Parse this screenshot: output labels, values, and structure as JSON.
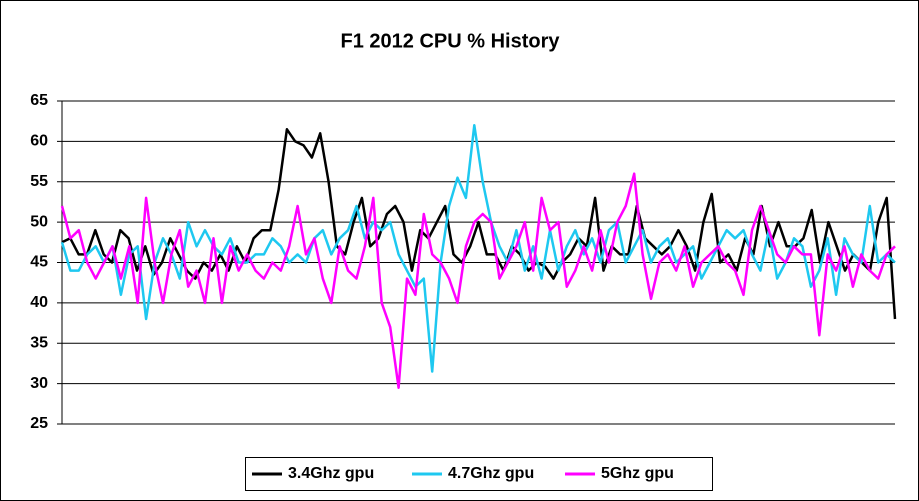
{
  "chart_data": {
    "type": "line",
    "title": "F1 2012 CPU % History",
    "ylim": [
      25,
      65
    ],
    "yticks": [
      25,
      30,
      35,
      40,
      45,
      50,
      55,
      60,
      65
    ],
    "grid": true,
    "legend": "bottom",
    "series": [
      {
        "name": "3.4Ghz gpu",
        "color": "#000000",
        "values": [
          47.5,
          48,
          46,
          46,
          49,
          46,
          45,
          49,
          48,
          44,
          47,
          43.5,
          45,
          48,
          46,
          44,
          43,
          45,
          44,
          46,
          44,
          47,
          45,
          48,
          49,
          49,
          54,
          61.5,
          60,
          59.5,
          58,
          61,
          55,
          47,
          46,
          50,
          53,
          47,
          48,
          51,
          52,
          50,
          44,
          49,
          48,
          50,
          52,
          46,
          45,
          47,
          50,
          46,
          46,
          44,
          47,
          46,
          44,
          45,
          44.5,
          43,
          45,
          46,
          48,
          47,
          53,
          44,
          47,
          46,
          46,
          52,
          48,
          47,
          46,
          47,
          49,
          47,
          44,
          50,
          53.5,
          45,
          46,
          44,
          48,
          46,
          52,
          47,
          50,
          47,
          47,
          48,
          51.5,
          45,
          50,
          47,
          44,
          46,
          45,
          44,
          50,
          53,
          38
        ]
      },
      {
        "name": "4.7Ghz gpu",
        "color": "#1ec8f0",
        "values": [
          47.5,
          44,
          44,
          46,
          47,
          45,
          47,
          41,
          46,
          47,
          38,
          45,
          48,
          46,
          43,
          50,
          47,
          49,
          47,
          46,
          48,
          45,
          45,
          46,
          46,
          48,
          47,
          45,
          46,
          45,
          48,
          49,
          46,
          48,
          49,
          52,
          48,
          50,
          49,
          50,
          46,
          44,
          42,
          43,
          31.5,
          45,
          52,
          55.5,
          53,
          62,
          55,
          50,
          47,
          45,
          49,
          44,
          47,
          43,
          49,
          44,
          47,
          49,
          46,
          48,
          45,
          49,
          50,
          45,
          47,
          49,
          45,
          47,
          48,
          45,
          46,
          47,
          43,
          45,
          47,
          49,
          48,
          49,
          46,
          44,
          49,
          43,
          45,
          48,
          47,
          42,
          44,
          48,
          41,
          48,
          46,
          45,
          52,
          45,
          46,
          45
        ]
      },
      {
        "name": "5Ghz gpu",
        "color": "#ff00ff",
        "values": [
          52,
          48,
          49,
          45,
          43,
          45,
          47,
          43,
          47,
          40,
          53,
          45,
          40,
          46,
          49,
          42,
          44,
          40,
          48,
          40,
          47,
          44,
          46,
          44,
          43,
          45,
          44,
          47,
          52,
          46,
          48,
          43,
          40,
          47,
          44,
          43,
          47,
          53,
          40,
          37,
          29.5,
          43,
          41,
          51,
          46,
          45,
          43,
          40,
          47,
          50,
          51,
          50,
          43,
          45,
          47,
          50,
          44,
          53,
          49,
          50,
          42,
          44,
          47,
          44,
          49,
          45,
          50,
          52,
          56,
          46,
          40.5,
          45,
          46,
          44,
          47,
          42,
          45,
          46,
          47,
          45,
          44,
          41,
          49,
          52,
          49,
          46,
          45,
          47,
          46,
          46,
          36,
          46,
          44,
          47,
          42,
          46,
          44,
          43,
          46,
          47
        ]
      }
    ]
  }
}
